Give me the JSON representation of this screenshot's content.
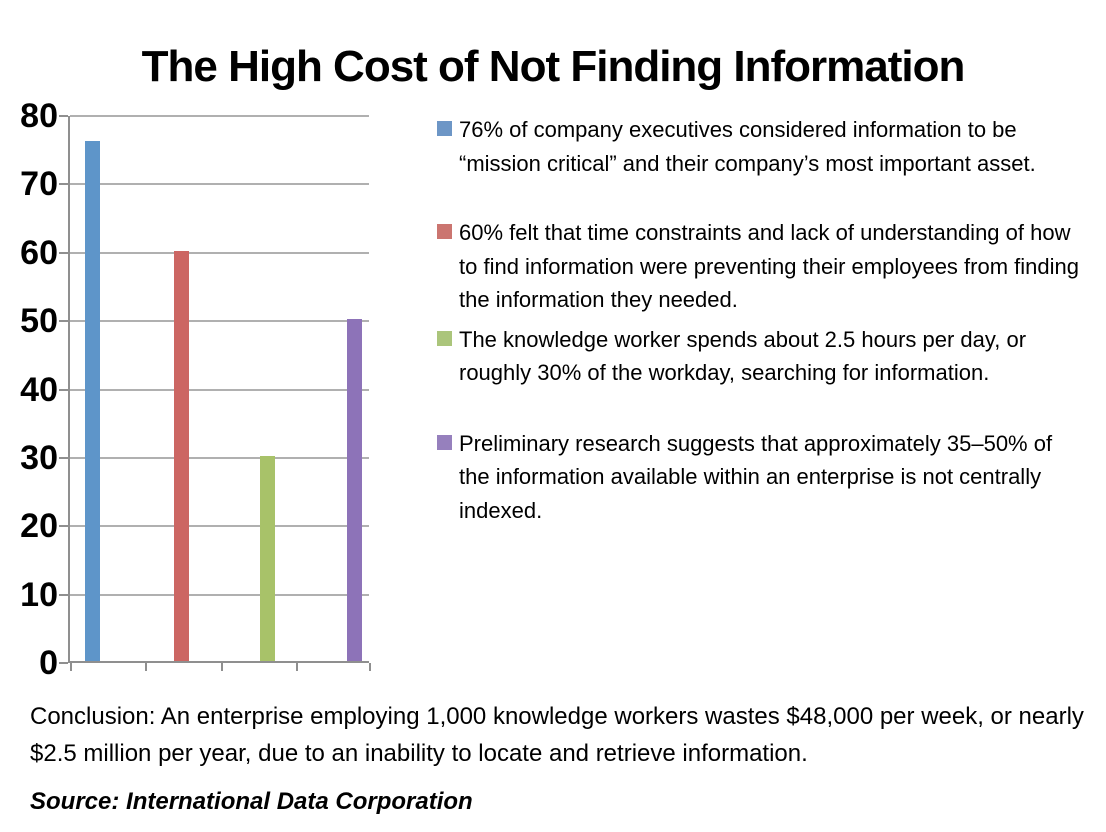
{
  "chart_data": {
    "type": "bar",
    "title": "The High Cost of Not Finding Information",
    "xlabel": "",
    "ylabel": "",
    "categories": [
      "",
      "",
      "",
      ""
    ],
    "values": [
      76,
      60,
      30,
      50
    ],
    "bar_colors": [
      "#5E95C9",
      "#CC6663",
      "#A8C269",
      "#8D73B8"
    ],
    "ylim": [
      0,
      80
    ],
    "yticks": [
      0,
      10,
      20,
      30,
      40,
      50,
      60,
      70,
      80
    ],
    "grid": true,
    "legend_position": "right",
    "legend": [
      {
        "bullet_color": "#6D96C6",
        "text": "76% of company executives considered information to be “mission critical” and their company’s most important asset."
      },
      {
        "bullet_color": "#CB7570",
        "text": "60% felt that time constraints and lack of understanding of how to find information were preventing their employees from finding the information they needed."
      },
      {
        "bullet_color": "#ABC57B",
        "text": "The knowledge worker spends about 2.5 hours per day, or roughly 30% of the workday, searching for information."
      },
      {
        "bullet_color": "#9680BD",
        "text": "Preliminary research suggests that approximately 35–50% of the information available within an enterprise is not centrally indexed."
      }
    ]
  },
  "conclusion": "Conclusion: An enterprise employing 1,000 knowledge workers wastes $48,000 per week, or nearly $2.5 million per year, due to an inability to locate and retrieve information.",
  "source": "Source: International Data Corporation"
}
